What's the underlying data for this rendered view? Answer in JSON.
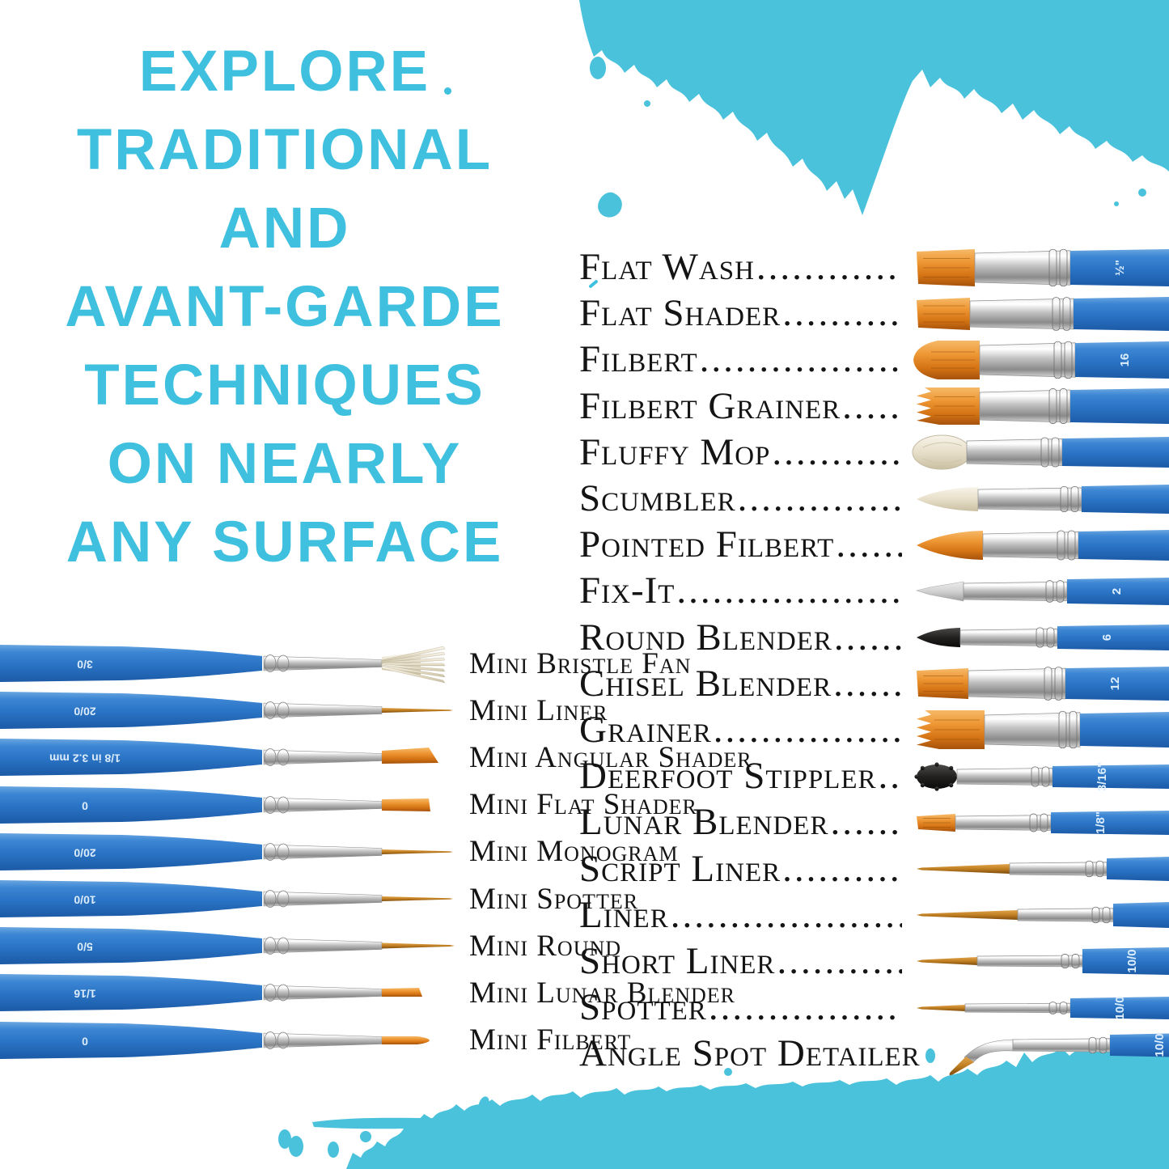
{
  "headline": {
    "lines": [
      "EXPLORE",
      "TRADITIONAL",
      "AND",
      "AVANT-GARDE",
      "TECHNIQUES",
      "ON NEARLY",
      "ANY SURFACE"
    ]
  },
  "colors": {
    "headline_cyan": "#3fc0de",
    "splatter_cyan": "#4ac2dc",
    "handle_blue": "#2d78c8",
    "ferrule_silver": "#c2c2c2",
    "bristle_orange": "#ee9734",
    "bristle_gold": "#c07f22",
    "bristle_white": "#e7dfc9",
    "bristle_black": "#23211f",
    "text_color": "#141414"
  },
  "right_list": {
    "items": [
      {
        "label": "Flat Wash",
        "tip": "flat",
        "bristle": "orange",
        "handle_label": "½\""
      },
      {
        "label": "Flat Shader",
        "tip": "flat",
        "bristle": "orange",
        "handle_label": ""
      },
      {
        "label": "Filbert",
        "tip": "filbert",
        "bristle": "orange",
        "handle_label": "16"
      },
      {
        "label": "Filbert Grainer",
        "tip": "grainer",
        "bristle": "orange",
        "handle_label": ""
      },
      {
        "label": "Fluffy Mop",
        "tip": "mop",
        "bristle": "white",
        "handle_label": ""
      },
      {
        "label": "Scumbler",
        "tip": "dome",
        "bristle": "white",
        "handle_label": ""
      },
      {
        "label": "Pointed Filbert",
        "tip": "point",
        "bristle": "orange",
        "handle_label": ""
      },
      {
        "label": "Fix-It",
        "tip": "wedge",
        "bristle": "gray",
        "handle_label": "2"
      },
      {
        "label": "Round Blender",
        "tip": "roundtip",
        "bristle": "black",
        "handle_label": "6"
      },
      {
        "label": "Chisel Blender",
        "tip": "flat",
        "bristle": "orange",
        "handle_label": "12"
      },
      {
        "label": "Grainer",
        "tip": "grainer",
        "bristle": "orange",
        "handle_label": ""
      },
      {
        "label": "Deerfoot Stippler",
        "tip": "fuzz",
        "bristle": "black",
        "handle_label": "3/16\""
      },
      {
        "label": "Lunar Blender",
        "tip": "smallflat",
        "bristle": "orange",
        "handle_label": "1/8\""
      },
      {
        "label": "Script Liner",
        "tip": "longpoint",
        "bristle": "gold",
        "handle_label": ""
      },
      {
        "label": "Liner",
        "tip": "longpoint",
        "bristle": "gold",
        "handle_label": ""
      },
      {
        "label": "Short Liner",
        "tip": "shortpoint",
        "bristle": "gold",
        "handle_label": "10/0"
      },
      {
        "label": "Spotter",
        "tip": "shortpoint",
        "bristle": "gold",
        "handle_label": "10/0"
      },
      {
        "label": "Angle Spot Detailer",
        "tip": "angle",
        "bristle": "gold",
        "handle_label": "10/0"
      }
    ]
  },
  "mini_list": {
    "items": [
      {
        "label": "Mini Bristle Fan",
        "tip": "fan",
        "bristle": "white",
        "handle_label": "3/0"
      },
      {
        "label": "Mini Liner",
        "tip": "linerS",
        "bristle": "gold",
        "handle_label": "20/0"
      },
      {
        "label": "Mini Angular Shader",
        "tip": "angular",
        "bristle": "orange",
        "handle_label": "1/8 in 3.2 mm"
      },
      {
        "label": "Mini Flat Shader",
        "tip": "flatS",
        "bristle": "orange",
        "handle_label": "0"
      },
      {
        "label": "Mini Monogram",
        "tip": "linerS",
        "bristle": "gold",
        "handle_label": "20/0"
      },
      {
        "label": "Mini Spotter",
        "tip": "linerS",
        "bristle": "gold",
        "handle_label": "10/0"
      },
      {
        "label": "Mini Round",
        "tip": "roundS",
        "bristle": "gold",
        "handle_label": "5/0"
      },
      {
        "label": "Mini Lunar Blender",
        "tip": "lunarS",
        "bristle": "orange",
        "handle_label": "1/16"
      },
      {
        "label": "Mini Filbert",
        "tip": "filbertS",
        "bristle": "orange",
        "handle_label": "0"
      }
    ]
  }
}
